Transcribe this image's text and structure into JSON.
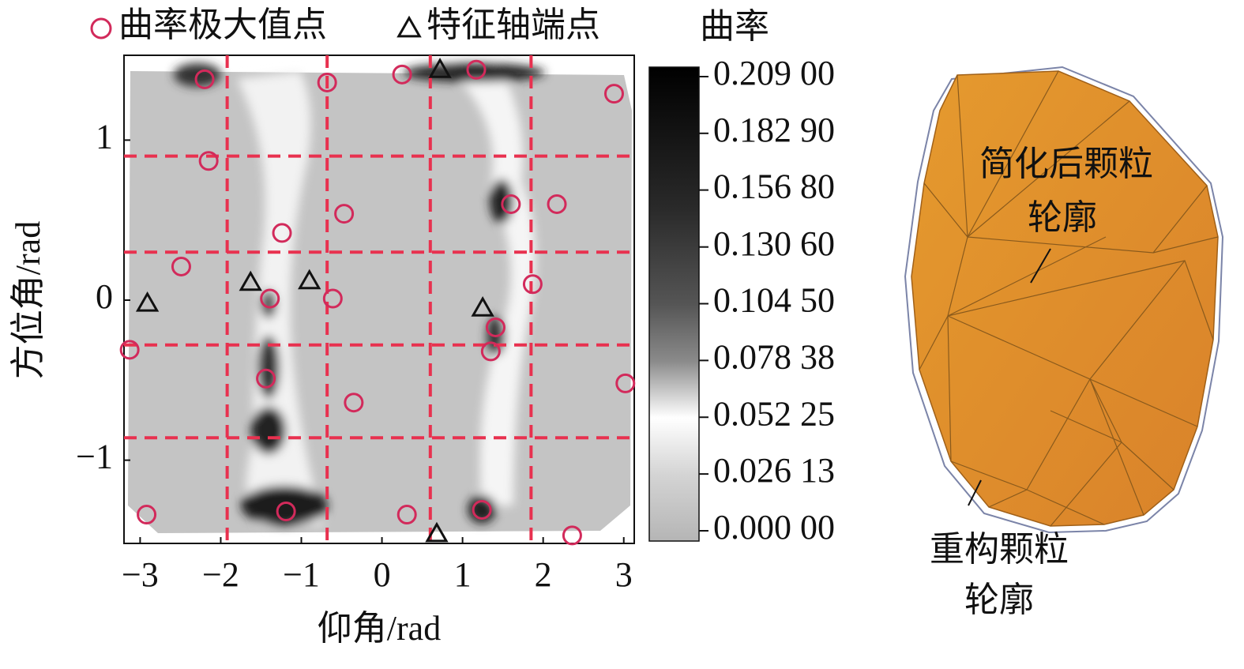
{
  "chart_data": {
    "type": "scatter",
    "xlabel": "仰角/rad",
    "ylabel": "方位角/rad",
    "xlim": [
      -3.2,
      3.13
    ],
    "ylim": [
      -1.52,
      1.53
    ],
    "xticks": [
      {
        "value": -3,
        "label": "−3"
      },
      {
        "value": -2,
        "label": "−2"
      },
      {
        "value": -1,
        "label": "−1"
      },
      0,
      1,
      2,
      3
    ],
    "yticks": [
      {
        "value": -1,
        "label": "−1"
      },
      0,
      1
    ],
    "vlines": [
      -1.92,
      -0.68,
      0.6,
      1.85
    ],
    "hlines": [
      0.9,
      0.3,
      -0.28,
      -0.86
    ],
    "ref_line_color": "#e8314f",
    "series": [
      {
        "name": "曲率极大值点",
        "marker": "circle",
        "color": "#d22a5b",
        "x": [
          -2.2,
          -0.68,
          0.25,
          1.17,
          2.88,
          -2.15,
          -0.47,
          1.6,
          2.17,
          -1.24,
          -2.49,
          -1.39,
          -0.61,
          1.87,
          -3.13,
          1.41,
          1.35,
          -1.44,
          -0.35,
          3.02,
          -2.92,
          -1.19,
          0.31,
          1.24,
          2.36
        ],
        "values": [
          1.38,
          1.36,
          1.41,
          1.44,
          1.29,
          0.87,
          0.54,
          0.6,
          0.6,
          0.42,
          0.21,
          0.01,
          0.01,
          0.1,
          -0.31,
          -0.17,
          -0.32,
          -0.49,
          -0.64,
          -0.52,
          -1.34,
          -1.32,
          -1.34,
          -1.31,
          -1.47
        ]
      },
      {
        "name": "特征轴端点",
        "marker": "triangle",
        "color": "#111111",
        "x": [
          0.72,
          -2.91,
          -1.63,
          -0.9,
          1.25,
          0.68
        ],
        "values": [
          1.44,
          -0.02,
          0.11,
          0.12,
          -0.05,
          -1.46
        ]
      }
    ],
    "colorbar": {
      "title": "曲率",
      "clim": [
        0,
        0.209
      ],
      "ticks": [
        {
          "value": 0.209,
          "label": "0.209 00"
        },
        {
          "value": 0.1829,
          "label": "0.182 90"
        },
        {
          "value": 0.1568,
          "label": "0.156 80"
        },
        {
          "value": 0.1306,
          "label": "0.130 60"
        },
        {
          "value": 0.1045,
          "label": "0.104 50"
        },
        {
          "value": 0.07838,
          "label": "0.078 38"
        },
        {
          "value": 0.05225,
          "label": "0.052 25"
        },
        {
          "value": 0.02613,
          "label": "0.026 13"
        },
        {
          "value": 0,
          "label": "0.000 00"
        }
      ]
    }
  },
  "particle": {
    "simplified_label": [
      "简化后颗粒",
      "轮廓"
    ],
    "reconstructed_label": [
      "重构颗粒",
      "轮廓"
    ]
  }
}
